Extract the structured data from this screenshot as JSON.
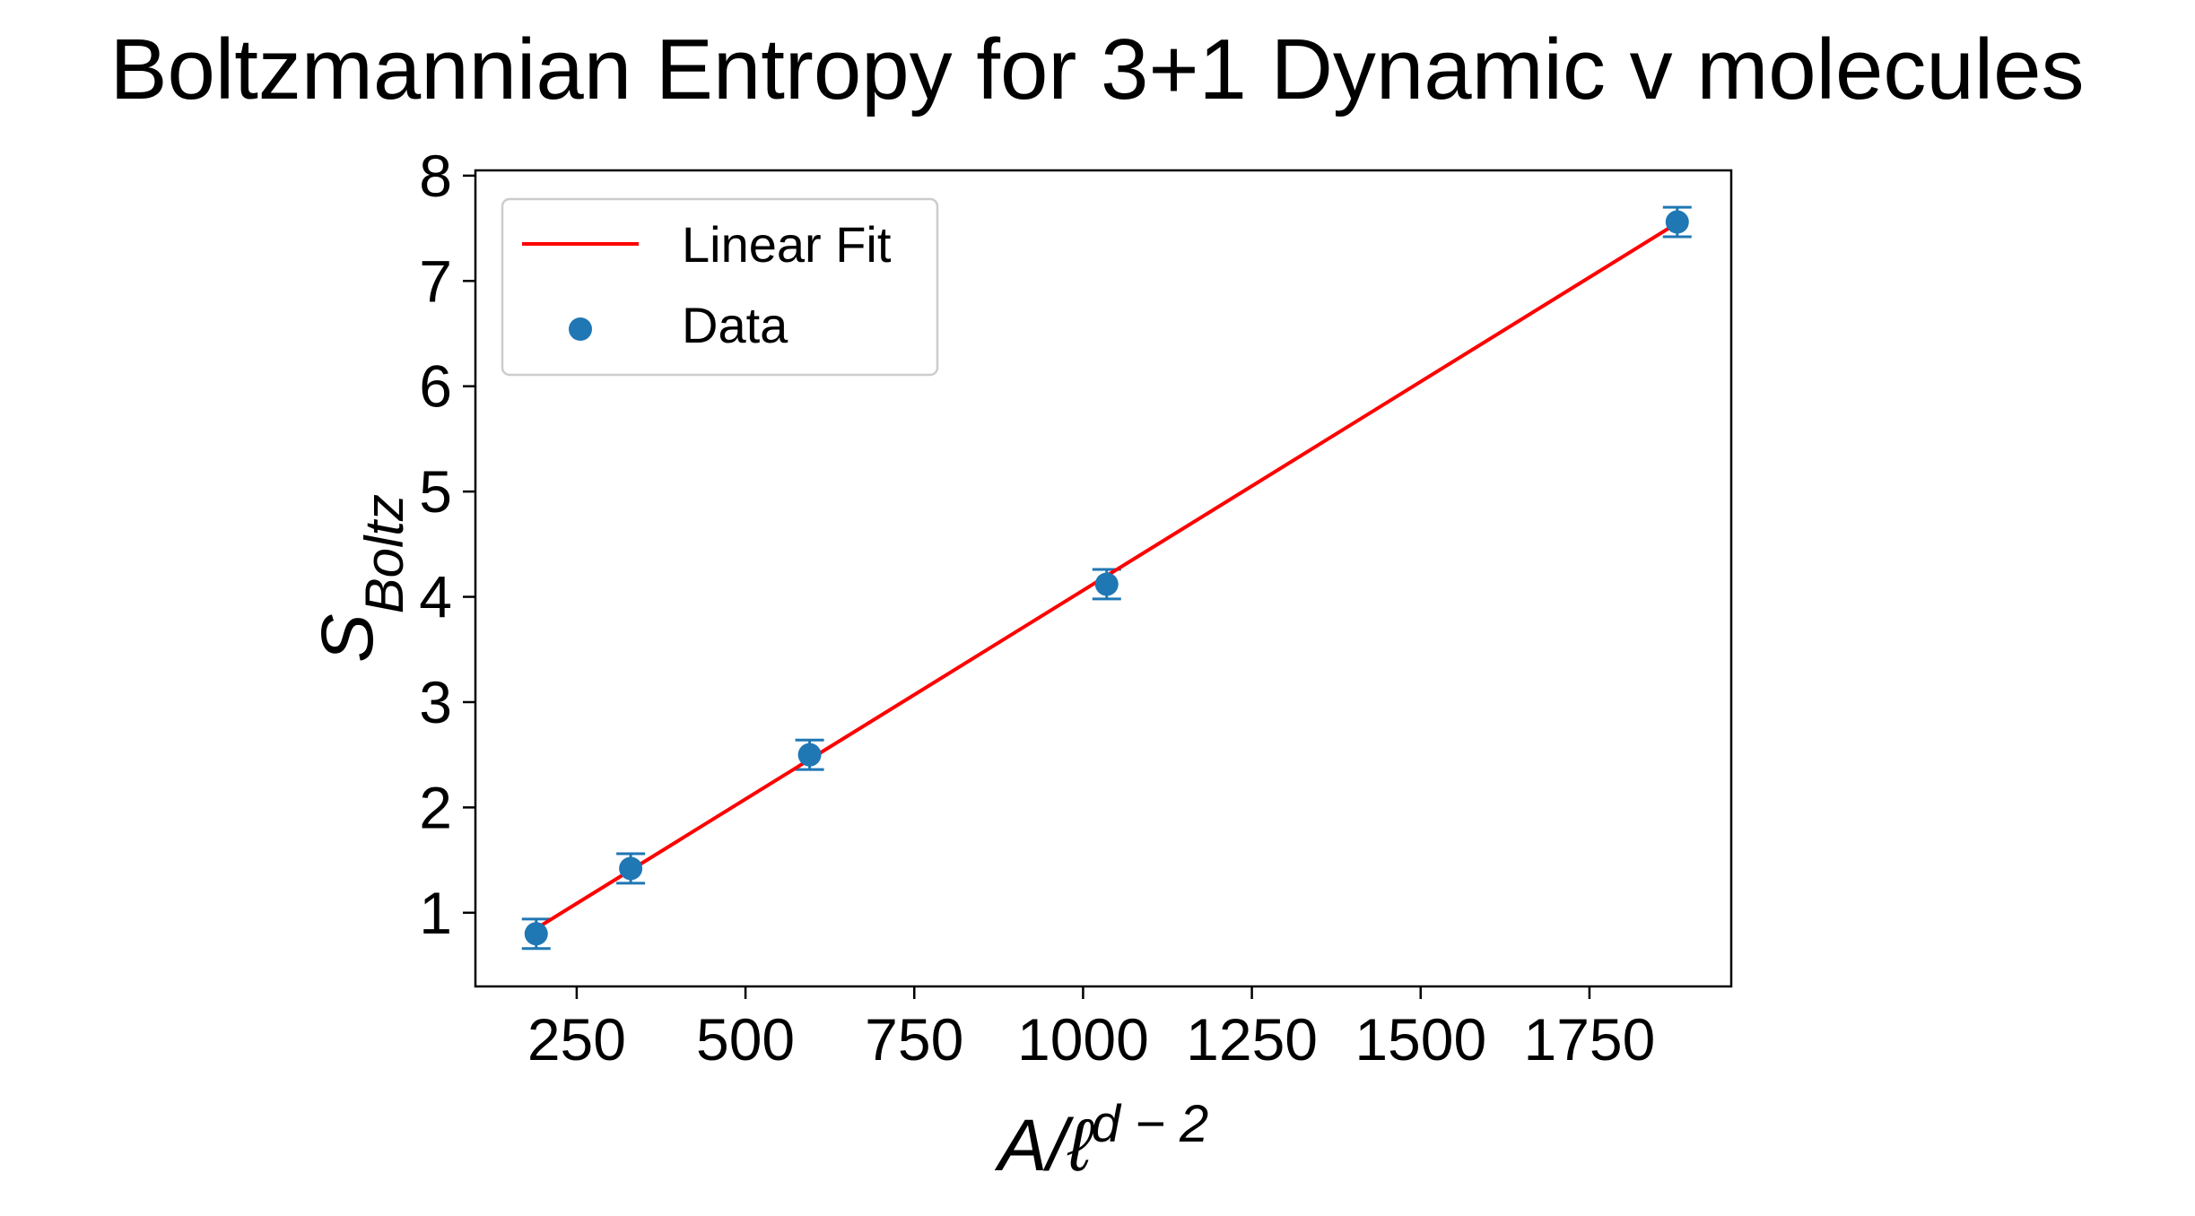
{
  "chart_data": {
    "type": "scatter",
    "title": "Boltzmannian Entropy for 3+1 Dynamic v molecules",
    "xlabel": "A/ℓ^{d−2}",
    "ylabel": "S_Boltz",
    "xlim": [
      100,
      1960
    ],
    "ylim": [
      0.3,
      8.05
    ],
    "x_ticks": [
      250,
      500,
      750,
      1000,
      1250,
      1500,
      1750
    ],
    "y_ticks": [
      1,
      2,
      3,
      4,
      5,
      6,
      7,
      8
    ],
    "grid": false,
    "legend_position": "upper-left",
    "colors": {
      "fit": "#ff0000",
      "data": "#1f77b4"
    },
    "series": [
      {
        "name": "Linear Fit",
        "kind": "line",
        "x": [
          190,
          1880
        ],
        "y": [
          0.85,
          7.55
        ]
      },
      {
        "name": "Data",
        "kind": "scatter",
        "x": [
          190,
          330,
          595,
          1035,
          1880
        ],
        "y": [
          0.8,
          1.42,
          2.5,
          4.12,
          7.56
        ],
        "yerr": [
          0.14,
          0.14,
          0.14,
          0.14,
          0.14
        ]
      }
    ]
  }
}
